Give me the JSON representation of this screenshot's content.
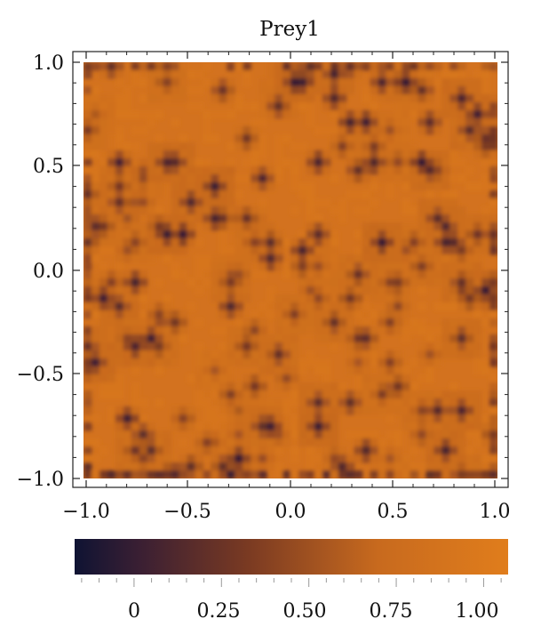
{
  "chart_data": {
    "type": "heatmap",
    "title": "Prey1",
    "xlabel": "",
    "ylabel": "",
    "xlim": [
      -1.0,
      1.0
    ],
    "ylim": [
      -1.0,
      1.0
    ],
    "x_ticks": [
      "−1.0",
      "−0.5",
      "0.0",
      "0.5",
      "1.0"
    ],
    "y_ticks": [
      "1.0",
      "0.5",
      "0.0",
      "−0.5",
      "−1.0"
    ],
    "grid": false,
    "colorbar": {
      "range": [
        -0.17,
        1.07
      ],
      "ticks": [
        "0",
        "0.25",
        "0.50",
        "0.75",
        "1.00"
      ],
      "tick_values": [
        0,
        0.25,
        0.5,
        0.75,
        1.0
      ],
      "colors": [
        "#0f1333",
        "#3a1f33",
        "#7a3a22",
        "#c86a1e",
        "#e07d1c"
      ]
    },
    "field_description": "mostly values near 0.9–1.0 (orange) with scattered dark patches down to about -0.1",
    "colors": {
      "base": "#d3721f",
      "dark": "#1b1a35"
    }
  }
}
